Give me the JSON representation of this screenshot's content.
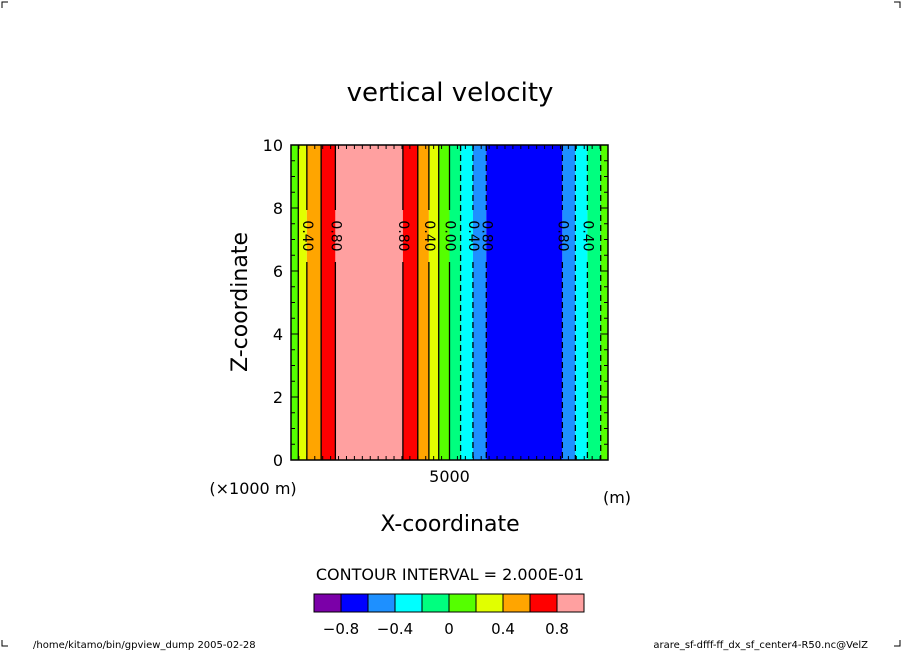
{
  "chart_data": {
    "type": "filled-contour",
    "title": "vertical velocity",
    "xlabel": "X-coordinate",
    "ylabel": "Z-coordinate",
    "x_unit": "(m)",
    "x_scale_note": "(×1000 m)",
    "xlim": [
      0,
      10000
    ],
    "ylim": [
      0,
      10
    ],
    "x_ticks": [
      {
        "value": 5000,
        "label": "5000"
      }
    ],
    "y_ticks": [
      {
        "value": 0,
        "label": "0"
      },
      {
        "value": 2,
        "label": "2"
      },
      {
        "value": 4,
        "label": "4"
      },
      {
        "value": 6,
        "label": "6"
      },
      {
        "value": 8,
        "label": "8"
      },
      {
        "value": 10,
        "label": "10"
      }
    ],
    "contour_interval_text": "CONTOUR INTERVAL = 2.000E-01",
    "levels": [
      -1.0,
      -0.8,
      -0.6,
      -0.4,
      -0.2,
      0.0,
      0.2,
      0.4,
      0.6,
      0.8,
      1.0
    ],
    "colors": [
      "#7b00a8",
      "#0000ff",
      "#1e90ff",
      "#00ffff",
      "#00ff7f",
      "#55ff00",
      "#e1ff00",
      "#ffa500",
      "#ff0000",
      "#ffa0a0"
    ],
    "colorbar_labels": [
      {
        "value": -0.8,
        "label": "−0.8"
      },
      {
        "value": -0.4,
        "label": "−0.4"
      },
      {
        "value": 0,
        "label": "0"
      },
      {
        "value": 0.4,
        "label": "0.4"
      },
      {
        "value": 0.8,
        "label": "0.8"
      }
    ],
    "bands": [
      {
        "x0": 0,
        "x1": 230,
        "level": 0.0
      },
      {
        "x0": 230,
        "x1": 500,
        "level": 0.2
      },
      {
        "x0": 500,
        "x1": 950,
        "level": 0.4
      },
      {
        "x0": 950,
        "x1": 1400,
        "level": 0.6
      },
      {
        "x0": 1400,
        "x1": 3530,
        "level": 0.8
      },
      {
        "x0": 3530,
        "x1": 4000,
        "level": 0.6
      },
      {
        "x0": 4000,
        "x1": 4350,
        "level": 0.4
      },
      {
        "x0": 4350,
        "x1": 4660,
        "level": 0.2
      },
      {
        "x0": 4660,
        "x1": 5000,
        "level": 0.0
      },
      {
        "x0": 5000,
        "x1": 5350,
        "level": -0.2
      },
      {
        "x0": 5350,
        "x1": 5740,
        "level": -0.4
      },
      {
        "x0": 5740,
        "x1": 6160,
        "level": -0.6
      },
      {
        "x0": 6160,
        "x1": 8560,
        "level": -0.8
      },
      {
        "x0": 8560,
        "x1": 8970,
        "level": -0.6
      },
      {
        "x0": 8970,
        "x1": 9350,
        "level": -0.4
      },
      {
        "x0": 9350,
        "x1": 9770,
        "level": -0.2
      },
      {
        "x0": 9770,
        "x1": 10000,
        "level": 0.0
      }
    ],
    "contour_lines": [
      {
        "x": 230,
        "dashed": false,
        "label": ""
      },
      {
        "x": 500,
        "dashed": false,
        "label": "0.40"
      },
      {
        "x": 950,
        "dashed": false,
        "label": ""
      },
      {
        "x": 1400,
        "dashed": false,
        "label": "0.80"
      },
      {
        "x": 3530,
        "dashed": false,
        "label": "0.80"
      },
      {
        "x": 4000,
        "dashed": false,
        "label": ""
      },
      {
        "x": 4350,
        "dashed": false,
        "label": "0.40"
      },
      {
        "x": 4660,
        "dashed": false,
        "label": ""
      },
      {
        "x": 5000,
        "dashed": false,
        "label": "0.00"
      },
      {
        "x": 5350,
        "dashed": true,
        "label": ""
      },
      {
        "x": 5740,
        "dashed": true,
        "label": "0.40"
      },
      {
        "x": 6160,
        "dashed": true,
        "label": "0.80"
      },
      {
        "x": 8560,
        "dashed": true,
        "label": "0.80"
      },
      {
        "x": 8970,
        "dashed": true,
        "label": ""
      },
      {
        "x": 9350,
        "dashed": true,
        "label": "0.40"
      },
      {
        "x": 9770,
        "dashed": true,
        "label": ""
      }
    ]
  },
  "footer": {
    "left": "/home/kitamo/bin/gpview_dump  2005-02-28",
    "right": "arare_sf-dfff-ff_dx_sf_center4-R50.nc@VelZ"
  }
}
